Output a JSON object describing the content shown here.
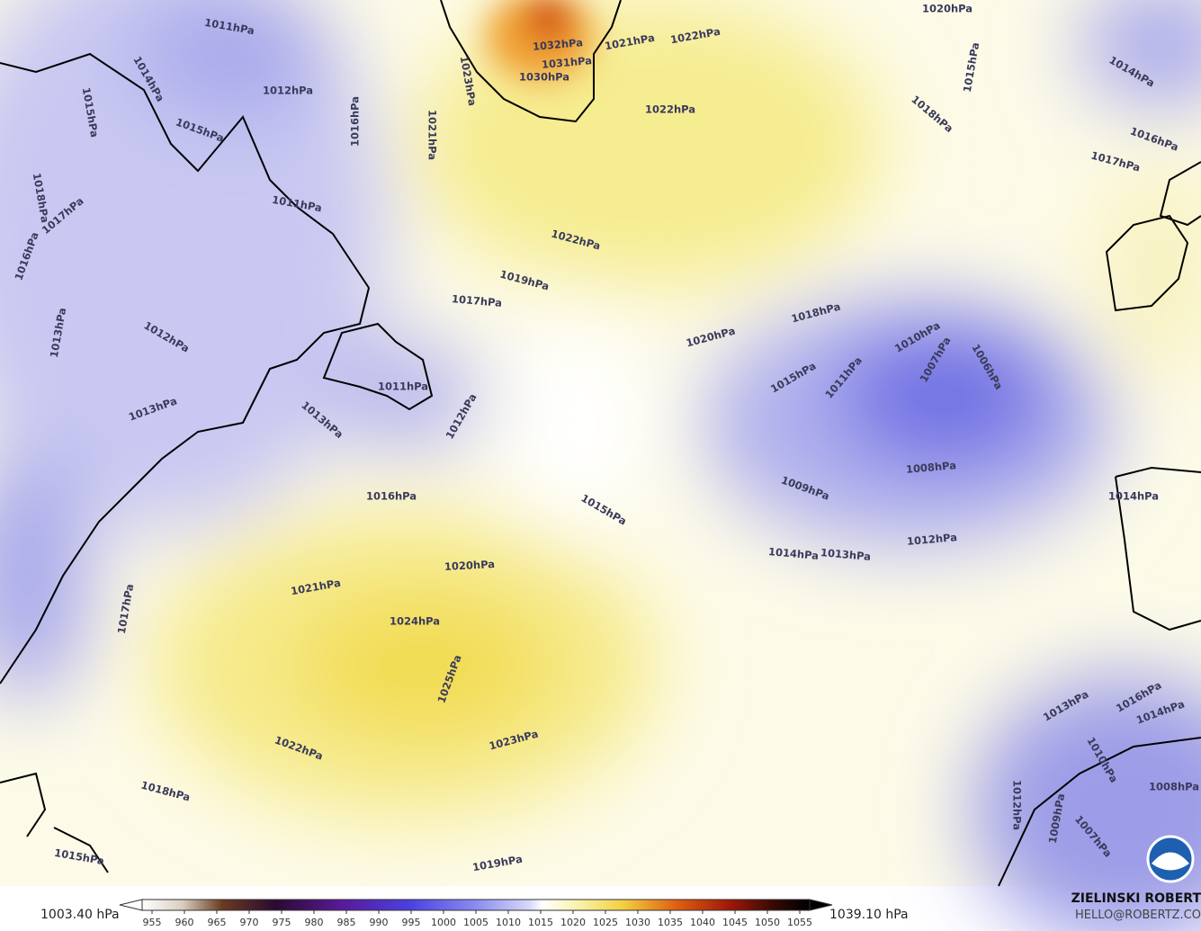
{
  "contour_labels": [
    "1011hPa",
    "1012hPa",
    "1014hPa",
    "1015hPa",
    "1015hPa",
    "1018hPa",
    "1017hPa",
    "1016hPa",
    "1011hPa",
    "1013hPa",
    "1012hPa",
    "1013hPa",
    "1013hPa",
    "1011hPa",
    "1012hPa",
    "1016hPa",
    "1021hPa",
    "1023hPa",
    "1021hPa",
    "1022hPa",
    "1022hPa",
    "1022hPa",
    "1019hPa",
    "1017hPa",
    "1020hPa",
    "1018hPa",
    "1015hPa",
    "1011hPa",
    "1010hPa",
    "1007hPa",
    "1006hPa",
    "1008hPa",
    "1009hPa",
    "1012hPa",
    "1013hPa",
    "1014hPa",
    "1016hPa",
    "1015hPa",
    "1020hPa",
    "1021hPa",
    "1024hPa",
    "1025hPa",
    "1023hPa",
    "1022hPa",
    "1018hPa",
    "1019hPa",
    "1015hPa",
    "1017hPa",
    "1018hPa",
    "1015hPa",
    "1020hPa",
    "1014hPa",
    "1016hPa",
    "1017hPa",
    "1014hPa",
    "1013hPa",
    "1010hPa",
    "1012hPa",
    "1009hPa",
    "1007hPa",
    "1008hPa",
    "1032hPa",
    "1031hPa",
    "1030hPa",
    "1016hPa",
    "1014hPa"
  ],
  "colorbar": {
    "range": [
      950,
      1060
    ],
    "ticks": [
      955,
      960,
      965,
      970,
      975,
      980,
      985,
      990,
      995,
      1000,
      1005,
      1010,
      1015,
      1020,
      1025,
      1030,
      1035,
      1040,
      1045,
      1050,
      1055
    ],
    "min_label": "1003.40 hPa",
    "max_label": "1039.10 hPa"
  },
  "credit": {
    "name": "ZIELINSKI ROBERT",
    "email": "HELLO@ROBERTZ.CO"
  }
}
